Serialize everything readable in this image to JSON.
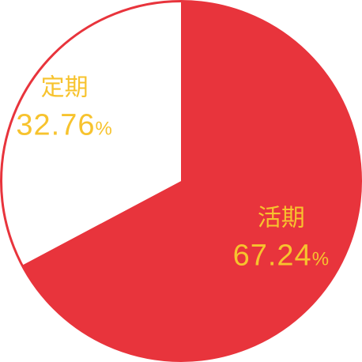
{
  "chart_data": {
    "type": "pie",
    "slices": [
      {
        "name": "活期",
        "value": 67.24,
        "display": "67.24",
        "unit": "%",
        "color": "#e8343c",
        "text_color": "#f7c32e"
      },
      {
        "name": "定期",
        "value": 32.76,
        "display": "32.76",
        "unit": "%",
        "color": "#ffffff",
        "text_color": "#f7c32e"
      }
    ],
    "start": "12 o'clock",
    "direction": "clockwise",
    "outline_color": "#e8343c",
    "legend": "none"
  }
}
